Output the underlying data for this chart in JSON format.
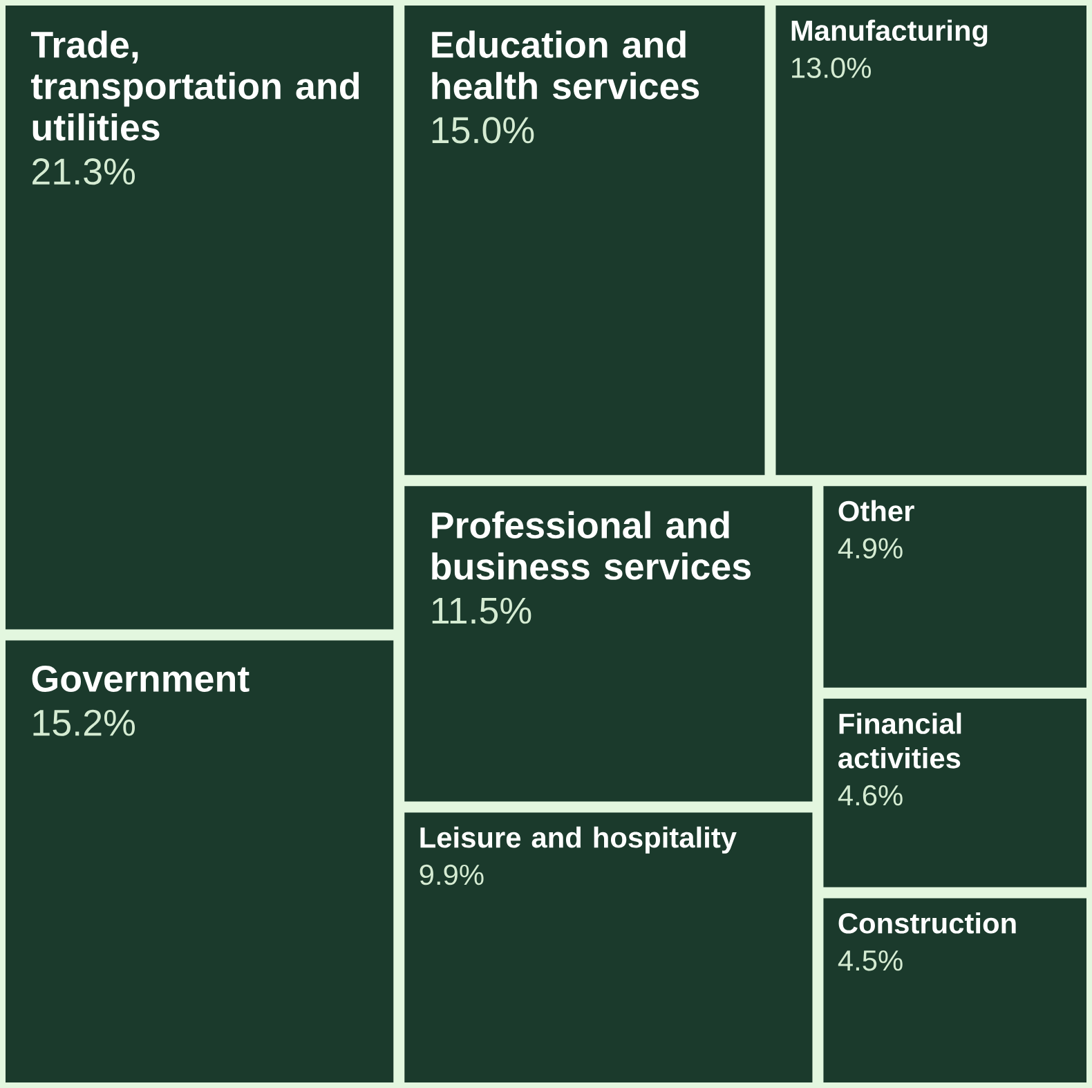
{
  "chart_data": {
    "type": "other",
    "categories": [
      "Trade, transportation and utilities",
      "Government",
      "Education and health services",
      "Manufacturing",
      "Professional and business services",
      "Leisure and hospitality",
      "Other",
      "Financial activities",
      "Construction"
    ],
    "values": [
      21.3,
      15.2,
      15.0,
      13.0,
      11.5,
      9.9,
      4.9,
      4.6,
      4.5
    ],
    "value_labels": [
      "21.3%",
      "15.2%",
      "15.0%",
      "13.0%",
      "11.5%",
      "9.9%",
      "4.9%",
      "4.6%",
      "4.5%"
    ],
    "color": "#1b3a2c"
  }
}
